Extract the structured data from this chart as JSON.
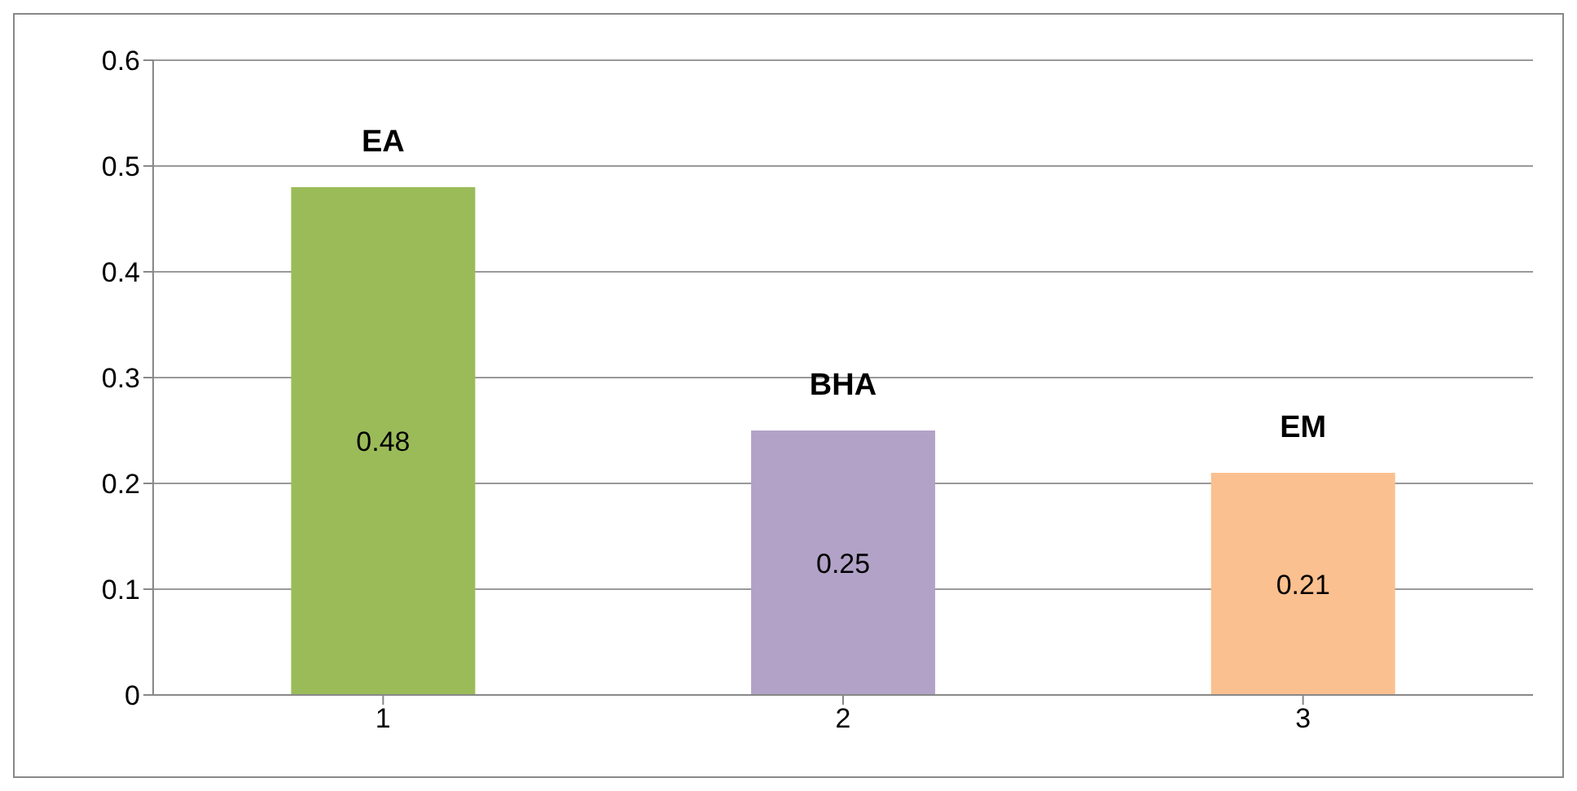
{
  "chart_data": {
    "type": "bar",
    "categories": [
      "1",
      "2",
      "3"
    ],
    "values": [
      0.48,
      0.25,
      0.21
    ],
    "colors": [
      "#9bbb59",
      "#b2a2c7",
      "#fac08f"
    ],
    "ylim": [
      0,
      0.6
    ],
    "yticks": [
      0,
      0.1,
      0.2,
      0.3,
      0.4,
      0.5,
      0.6
    ],
    "grid": "y",
    "data_labels": true,
    "legend": false,
    "annotations": [
      {
        "text": "EA",
        "x": "1",
        "y": 0.48
      },
      {
        "text": "BHA",
        "x": "2",
        "y": 0.25
      },
      {
        "text": "EM",
        "x": "3",
        "y": 0.21
      }
    ]
  }
}
